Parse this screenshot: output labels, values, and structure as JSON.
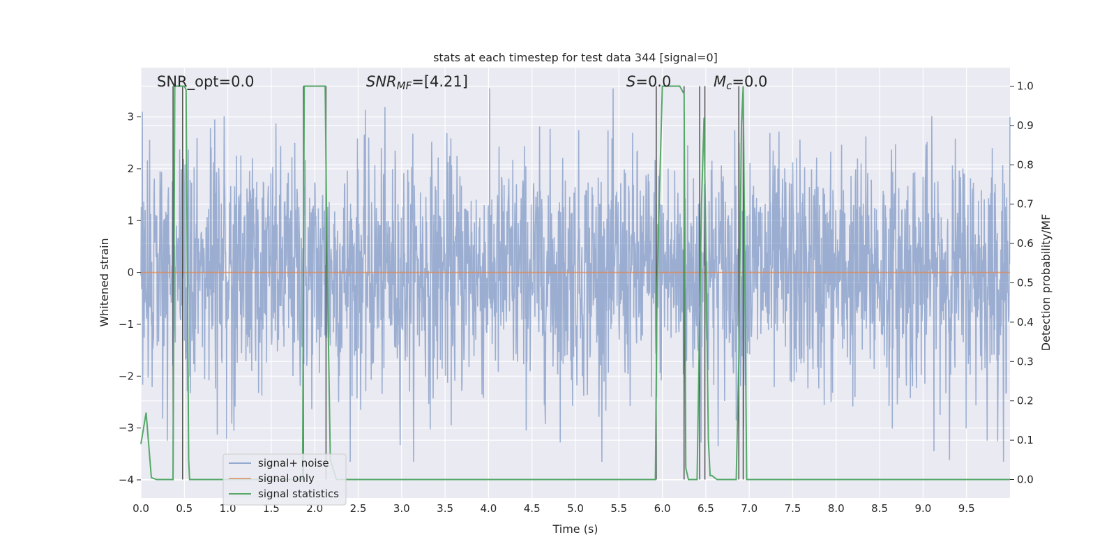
{
  "chart_data": {
    "type": "line",
    "title": "stats at each timestep for test data 344 [signal=0]",
    "xlabel": "Time (s)",
    "ylabel": "Whitened strain",
    "y2label": "Detection probability/MF",
    "xlim": [
      0,
      10
    ],
    "ylim": [
      -4.35,
      3.95
    ],
    "y2lim": [
      -0.047,
      1.047
    ],
    "xticks": [
      "0.0",
      "0.5",
      "1.0",
      "1.5",
      "2.0",
      "2.5",
      "3.0",
      "3.5",
      "4.0",
      "4.5",
      "5.0",
      "5.5",
      "6.0",
      "6.5",
      "7.0",
      "7.5",
      "8.0",
      "8.5",
      "9.0",
      "9.5"
    ],
    "yticks": [
      "3",
      "2",
      "1",
      "0",
      "−1",
      "−2",
      "−3",
      "−4"
    ],
    "y2ticks": [
      "1.0",
      "0.9",
      "0.8",
      "0.7",
      "0.6",
      "0.5",
      "0.4",
      "0.3",
      "0.2",
      "0.1",
      "0.0"
    ],
    "grid": true,
    "legend_position": "lower-left",
    "annotations": {
      "snr_opt": "SNR_opt=0.0",
      "snr_mf_base": "SNR",
      "snr_mf_sub": "MF",
      "snr_mf_value": "=[4.21]",
      "s_sym": "S",
      "s_value": "=0.0",
      "mc_sym": "M",
      "mc_sub": "c",
      "mc_value": "=0.0"
    },
    "series": [
      {
        "name": "signal+ noise",
        "color": "#4c72b0",
        "axis": "left",
        "description": "white noise ~N(0,1.15) sampled over 0–10 s, peaks reaching about +3.5 / −3.6"
      },
      {
        "name": "signal only",
        "color": "#dd8452",
        "axis": "left",
        "x": [
          0,
          10
        ],
        "y": [
          0,
          0
        ]
      },
      {
        "name": "signal statistics",
        "color": "#55a868",
        "axis": "right",
        "x": [
          0.0,
          0.06,
          0.12,
          0.18,
          0.37,
          0.39,
          0.5,
          0.52,
          0.55,
          0.56,
          1.86,
          1.88,
          1.92,
          2.12,
          2.14,
          2.18,
          2.25,
          2.26,
          5.92,
          5.94,
          6.0,
          6.2,
          6.25,
          6.27,
          6.3,
          6.33,
          6.4,
          6.45,
          6.48,
          6.5,
          6.53,
          6.55,
          6.57,
          6.63,
          6.7,
          6.85,
          6.88,
          6.91,
          6.93,
          6.95,
          6.97,
          10.0
        ],
        "y": [
          0.09,
          0.17,
          0.005,
          0.0,
          0.0,
          1.0,
          1.0,
          0.99,
          0.05,
          0.0,
          0.0,
          1.0,
          1.0,
          1.0,
          0.6,
          0.05,
          0.0,
          0.0,
          0.0,
          0.5,
          1.0,
          1.0,
          0.98,
          0.03,
          0.0,
          0.0,
          0.0,
          0.7,
          0.92,
          0.6,
          0.1,
          0.01,
          0.01,
          0.0,
          0.0,
          0.0,
          0.3,
          0.9,
          1.0,
          0.5,
          0.0,
          0.0
        ]
      }
    ],
    "vlines": [
      0.37,
      0.48,
      1.87,
      2.13,
      5.93,
      6.25,
      6.43,
      6.49,
      6.88,
      6.93
    ]
  }
}
